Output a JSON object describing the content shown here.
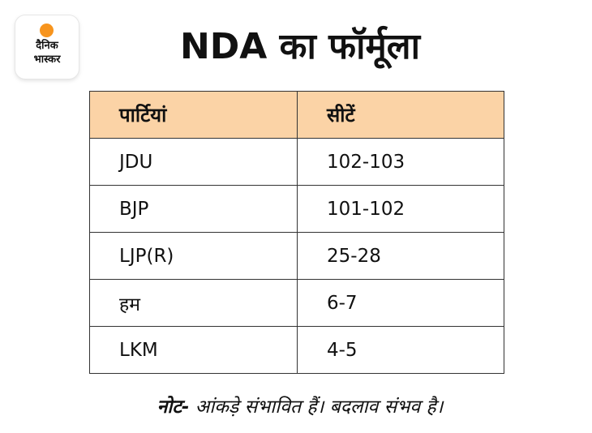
{
  "brand": {
    "line1": "दैनिक",
    "line2": "भास्कर",
    "accent_color": "#f7941d"
  },
  "title": "NDA का फॉर्मूला",
  "table": {
    "header_color": "#fbd3a6",
    "headers": [
      "पार्टियां",
      "सीटें"
    ],
    "rows": [
      [
        "JDU",
        "102-103"
      ],
      [
        "BJP",
        "101-102"
      ],
      [
        "LJP(R)",
        "25-28"
      ],
      [
        "हम",
        "6-7"
      ],
      [
        "LKM",
        "4-5"
      ]
    ]
  },
  "note": {
    "label": "नोट-",
    "text": " आंकड़े संभावित हैं। बदलाव संभव है।"
  }
}
